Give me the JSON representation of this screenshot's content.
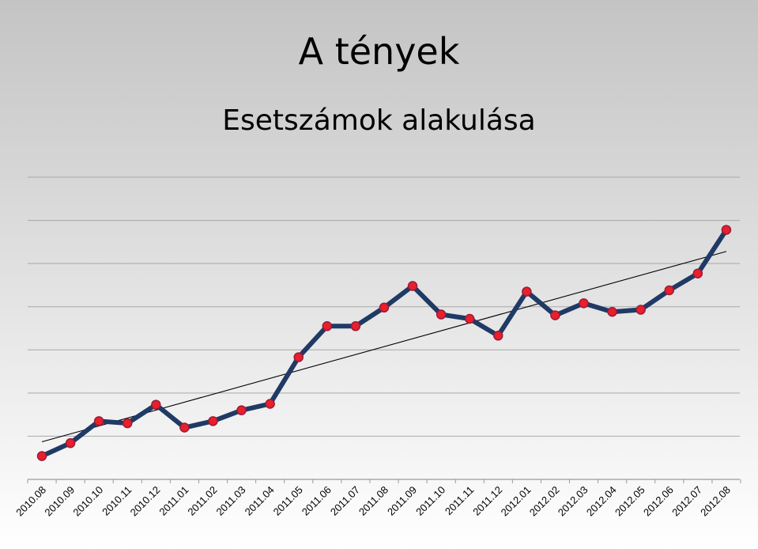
{
  "header": {
    "title": "A tények",
    "subtitle": "Esetszámok alakulása"
  },
  "colors": {
    "line": "#1f3a64",
    "marker_fill": "#e8202a",
    "marker_stroke": "#9a1a3a",
    "trend": "#000000",
    "grid": "#a8a8a8"
  },
  "chart_data": {
    "type": "line",
    "title": "",
    "xlabel": "",
    "ylabel": "",
    "ylim": [
      0,
      70
    ],
    "y_gridlines": 7,
    "grid": true,
    "categories": [
      "2010.08",
      "2010.09",
      "2010.10",
      "2010.11",
      "2010.12",
      "2011.01",
      "2011.02",
      "2011.03",
      "2011.04",
      "2011.05",
      "2011.06",
      "2011.07",
      "2011.08",
      "2011.09",
      "2011.10",
      "2011.11",
      "2011.12",
      "2012.01",
      "2012.02",
      "2012.03",
      "2012.04",
      "2012.05",
      "2012.06",
      "2012.07",
      "2012.08"
    ],
    "series": [
      {
        "values": [
          5.4,
          8.4,
          13.5,
          13.0,
          17.3,
          12.0,
          13.5,
          16.0,
          17.5,
          28.3,
          35.5,
          35.5,
          39.8,
          44.8,
          38.2,
          37.2,
          33.3,
          43.5,
          38.0,
          40.8,
          38.8,
          39.3,
          43.8,
          47.7,
          57.8
        ]
      }
    ],
    "trendline": {
      "type": "linear",
      "start": 8.7,
      "end": 52.8
    }
  }
}
